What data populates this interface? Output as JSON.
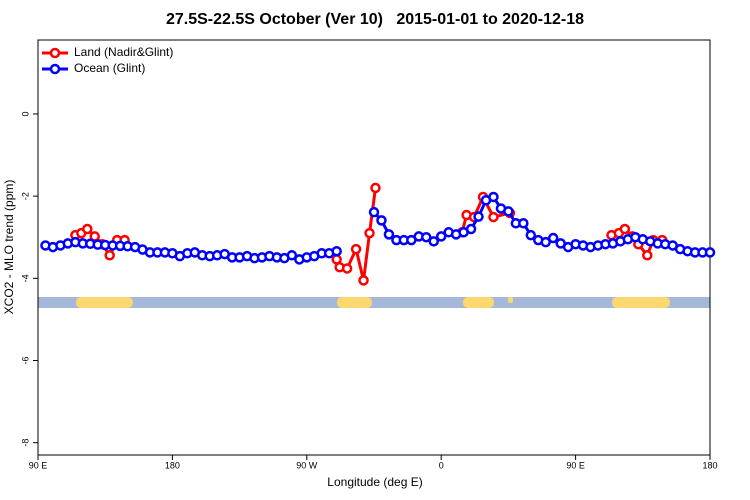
{
  "chart_data": {
    "type": "line",
    "title": "27.5S-22.5S October (Ver 10)   2015-01-01 to 2020-12-18",
    "xlabel": "Longitude (deg E)",
    "ylabel": "XCO2 - MLO trend (ppm)",
    "xlim": [
      90,
      540
    ],
    "xticks": [
      {
        "value": 90,
        "label": "90 E"
      },
      180,
      {
        "value": 270,
        "label": "90 W"
      },
      {
        "value": 360,
        "label": "0"
      },
      {
        "value": 450,
        "label": "90 E"
      },
      {
        "value": 540,
        "label": "180"
      }
    ],
    "ylim": [
      -8.3,
      1.8
    ],
    "yticks": [
      -8,
      -6,
      -4,
      -2,
      0
    ],
    "legend": "top-left",
    "series": [
      {
        "name": "Land (Nadir&Glint)",
        "color": "#ff0000",
        "x": [
          115,
          119,
          123,
          128,
          133,
          138,
          143,
          148,
          220,
          290,
          292,
          297,
          303,
          308,
          312,
          316,
          340,
          374,
          377,
          382,
          388,
          395,
          406,
          440,
          474,
          479,
          483,
          488,
          492,
          498,
          502,
          508
        ],
        "values": [
          -2.95,
          -2.9,
          -2.8,
          -2.98,
          -3.17,
          -3.44,
          -3.07,
          -3.07,
          null,
          -3.54,
          -3.73,
          -3.76,
          -3.29,
          -4.05,
          -2.9,
          -1.8,
          null,
          -2.88,
          -2.46,
          -2.51,
          -2.02,
          -2.51,
          -2.41,
          null,
          -2.95,
          -2.9,
          -2.8,
          -2.98,
          -3.17,
          -3.44,
          -3.07,
          -3.07
        ]
      },
      {
        "name": "Ocean (Glint)",
        "color": "#0000ff",
        "x": [
          95,
          100,
          105,
          110,
          115,
          120,
          125,
          130,
          135,
          140,
          145,
          150,
          155,
          160,
          165,
          170,
          175,
          180,
          185,
          190,
          195,
          200,
          205,
          210,
          215,
          220,
          225,
          230,
          235,
          240,
          245,
          250,
          255,
          260,
          265,
          270,
          275,
          280,
          285,
          290,
          300,
          315,
          320,
          325,
          330,
          335,
          340,
          345,
          350,
          355,
          360,
          365,
          370,
          375,
          380,
          385,
          390,
          395,
          400,
          405,
          410,
          415,
          420,
          425,
          430,
          435,
          440,
          445,
          450,
          455,
          460,
          465,
          470,
          475,
          480,
          485,
          490,
          495,
          500,
          505,
          510,
          515,
          520,
          525,
          530,
          535,
          540
        ],
        "values": [
          -3.2,
          -3.24,
          -3.2,
          -3.15,
          -3.12,
          -3.15,
          -3.16,
          -3.18,
          -3.19,
          -3.2,
          -3.21,
          -3.22,
          -3.24,
          -3.3,
          -3.37,
          -3.37,
          -3.37,
          -3.39,
          -3.46,
          -3.39,
          -3.37,
          -3.44,
          -3.46,
          -3.44,
          -3.41,
          -3.49,
          -3.49,
          -3.46,
          -3.51,
          -3.49,
          -3.46,
          -3.49,
          -3.51,
          -3.44,
          -3.54,
          -3.49,
          -3.46,
          -3.39,
          -3.39,
          -3.34,
          null,
          -2.39,
          -2.59,
          -2.93,
          -3.07,
          -3.07,
          -3.07,
          -2.98,
          -3.0,
          -3.1,
          -2.98,
          -2.88,
          -2.93,
          -2.88,
          -2.8,
          -2.5,
          -2.1,
          -2.02,
          -2.3,
          -2.37,
          -2.66,
          -2.66,
          -2.95,
          -3.07,
          -3.12,
          -3.02,
          -3.15,
          -3.24,
          -3.17,
          -3.2,
          -3.24,
          -3.2,
          -3.17,
          -3.15,
          -3.1,
          -3.05,
          -3.0,
          -3.05,
          -3.1,
          -3.15,
          -3.17,
          -3.2,
          -3.29,
          -3.34,
          -3.37,
          -3.37,
          -3.37
        ]
      }
    ]
  }
}
